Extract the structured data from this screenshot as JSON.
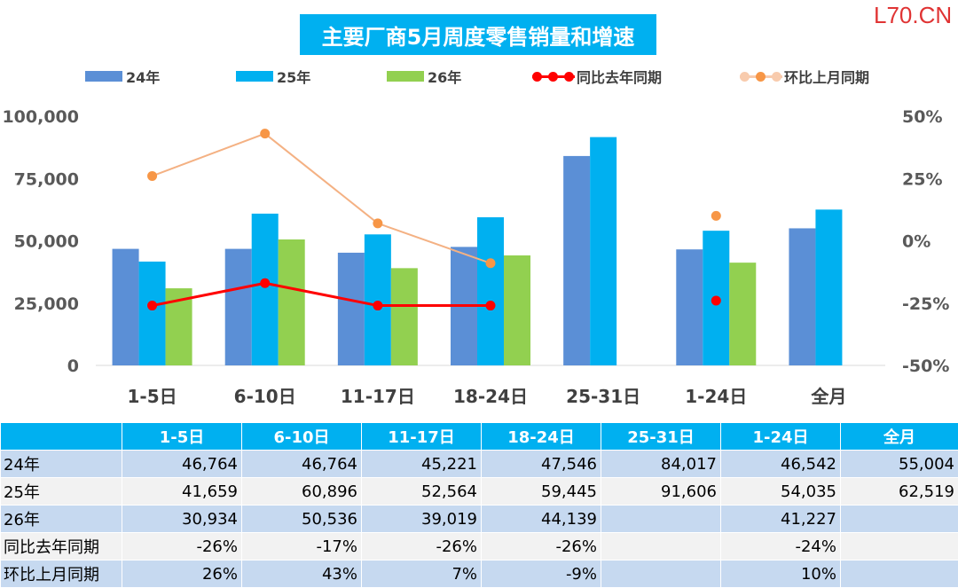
{
  "watermark": "L70.CN",
  "chart_data": {
    "type": "bar",
    "title": "主要厂商5月周度零售销量和增速",
    "categories": [
      "1-5日",
      "6-10日",
      "11-17日",
      "18-24日",
      "25-31日",
      "1-24日",
      "全月"
    ],
    "series": [
      {
        "name": "24年",
        "type": "bar",
        "axis": "left",
        "color": "#5b8fd6",
        "values": [
          46764,
          46764,
          45221,
          47546,
          84017,
          46542,
          55004
        ]
      },
      {
        "name": "25年",
        "type": "bar",
        "axis": "left",
        "color": "#00b0f0",
        "values": [
          41659,
          60896,
          52564,
          59445,
          91606,
          54035,
          62519
        ]
      },
      {
        "name": "26年",
        "type": "bar",
        "axis": "left",
        "color": "#92d050",
        "values": [
          30934,
          50536,
          39019,
          44139,
          null,
          41227,
          null
        ]
      },
      {
        "name": "同比去年同期",
        "type": "line",
        "axis": "right",
        "color": "#ff0000",
        "values": [
          -26,
          -17,
          -26,
          -26,
          null,
          -24,
          null
        ]
      },
      {
        "name": "环比上月同期",
        "type": "line",
        "axis": "right",
        "color": "#f4b183",
        "marker_color": "#f79646",
        "values": [
          26,
          43,
          7,
          -9,
          null,
          10,
          null
        ]
      }
    ],
    "line_connect_to_index": 3,
    "y_left": {
      "min": 0,
      "max": 100000,
      "ticks": [
        "0",
        "25,000",
        "50,000",
        "75,000",
        "100,000"
      ]
    },
    "y_right": {
      "min": -50,
      "max": 50,
      "unit": "%",
      "ticks": [
        "-50%",
        "-25%",
        "0%",
        "25%",
        "50%"
      ]
    },
    "grid": false,
    "legend_position": "top"
  },
  "table": {
    "headers": [
      "",
      "1-5日",
      "6-10日",
      "11-17日",
      "18-24日",
      "25-31日",
      "1-24日",
      "全月"
    ],
    "rows": [
      {
        "label": "24年",
        "cells": [
          "46,764",
          "46,764",
          "45,221",
          "47,546",
          "84,017",
          "46,542",
          "55,004"
        ]
      },
      {
        "label": "25年",
        "cells": [
          "41,659",
          "60,896",
          "52,564",
          "59,445",
          "91,606",
          "54,035",
          "62,519"
        ]
      },
      {
        "label": "26年",
        "cells": [
          "30,934",
          "50,536",
          "39,019",
          "44,139",
          "",
          "41,227",
          ""
        ]
      },
      {
        "label": "同比去年同期",
        "cells": [
          "-26%",
          "-17%",
          "-26%",
          "-26%",
          "",
          "-24%",
          ""
        ]
      },
      {
        "label": "环比上月同期",
        "cells": [
          "26%",
          "43%",
          "7%",
          "-9%",
          "",
          "10%",
          ""
        ]
      }
    ]
  }
}
